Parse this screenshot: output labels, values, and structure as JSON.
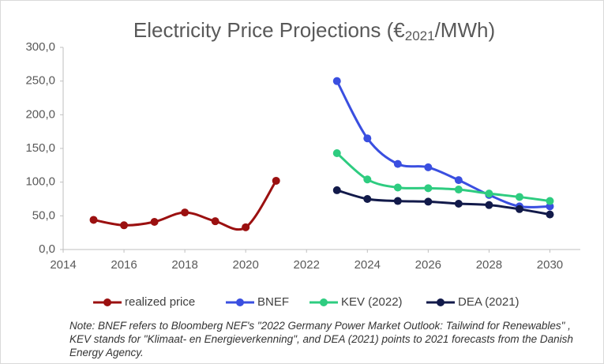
{
  "chart_data": {
    "type": "line",
    "title": {
      "main": "Electricity Price Projections (€",
      "sub": "2021",
      "end": "/MWh)"
    },
    "series": [
      {
        "name": "realized price",
        "color": "#9b1010",
        "x": [
          2015,
          2016,
          2017,
          2018,
          2019,
          2020,
          2021
        ],
        "values": [
          44,
          36,
          41,
          55,
          42,
          33,
          102
        ]
      },
      {
        "name": "BNEF",
        "color": "#3a4fe0",
        "x": [
          2023,
          2024,
          2025,
          2026,
          2027,
          2028,
          2029,
          2030
        ],
        "values": [
          250,
          165,
          127,
          122,
          103,
          81,
          64,
          64
        ]
      },
      {
        "name": "KEV (2022)",
        "color": "#2ecc80",
        "x": [
          2023,
          2024,
          2025,
          2026,
          2027,
          2028,
          2029,
          2030
        ],
        "values": [
          143,
          104,
          92,
          91,
          89,
          83,
          78,
          72
        ]
      },
      {
        "name": "DEA (2021)",
        "color": "#121a4a",
        "x": [
          2023,
          2024,
          2025,
          2026,
          2027,
          2028,
          2029,
          2030
        ],
        "values": [
          88,
          75,
          72,
          71,
          68,
          66,
          60,
          52
        ]
      }
    ],
    "xlim": [
      2014,
      2031
    ],
    "xticks": [
      2014,
      2016,
      2018,
      2020,
      2022,
      2024,
      2026,
      2028,
      2030
    ],
    "ylim": [
      0,
      300
    ],
    "yticks": [
      {
        "value": 0,
        "label": "0,0"
      },
      {
        "value": 50,
        "label": "50,0"
      },
      {
        "value": 100,
        "label": "100,0"
      },
      {
        "value": 150,
        "label": "150,0"
      },
      {
        "value": 200,
        "label": "200,0"
      },
      {
        "value": 250,
        "label": "250,0"
      },
      {
        "value": 300,
        "label": "300,0"
      }
    ],
    "smooth": true,
    "legend": "bottom",
    "note": "Note: BNEF refers to Bloomberg NEF's \"2022 Germany Power Market Outlook: Tailwind for Renewables\" , KEV stands for \"Klimaat- en Energieverkenning\", and  DEA (2021) points to 2021 forecasts from the Danish Energy Agency."
  }
}
